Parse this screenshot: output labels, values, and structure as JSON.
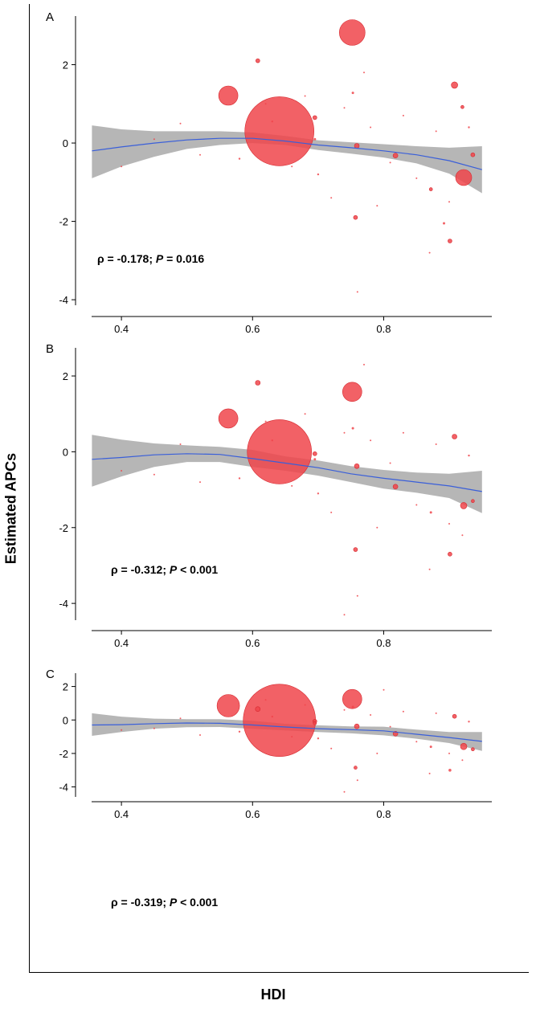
{
  "figure": {
    "ylabel": "Estimated APCs",
    "xlabel": "HDI"
  },
  "colors": {
    "point": "#f0454b",
    "band": "#a9a9a9",
    "line": "#3a5fd9",
    "axis": "#000000"
  },
  "chart_data": [
    {
      "type": "scatter",
      "panel": "A",
      "annotation": {
        "rho": "ρ = -0.178;",
        "p_label": "P",
        "p_text": " = 0.016"
      },
      "xlim": [
        0.33,
        0.96
      ],
      "ylim": [
        -4.1,
        3.2
      ],
      "x_ticks": [
        0.4,
        0.6,
        0.8
      ],
      "x_tick_labels": [
        "0.4",
        "0.6",
        "0.8"
      ],
      "y_ticks": [
        -4,
        -2,
        0,
        2
      ],
      "y_tick_labels": [
        "-4",
        "-2",
        "0",
        "2"
      ],
      "trend": {
        "x": [
          0.355,
          0.4,
          0.45,
          0.5,
          0.55,
          0.6,
          0.65,
          0.7,
          0.75,
          0.8,
          0.85,
          0.9,
          0.95
        ],
        "y": [
          -0.2,
          -0.1,
          0.0,
          0.08,
          0.12,
          0.12,
          0.05,
          -0.05,
          -0.12,
          -0.2,
          -0.3,
          -0.45,
          -0.68
        ],
        "lower": [
          -0.9,
          -0.6,
          -0.35,
          -0.15,
          -0.05,
          0.0,
          -0.05,
          -0.18,
          -0.27,
          -0.37,
          -0.52,
          -0.78,
          -1.28
        ],
        "upper": [
          0.45,
          0.35,
          0.3,
          0.3,
          0.3,
          0.27,
          0.18,
          0.07,
          0.02,
          -0.03,
          -0.08,
          -0.12,
          -0.08
        ]
      },
      "points": [
        {
          "x": 0.641,
          "y": 0.3,
          "size": 43
        },
        {
          "x": 0.752,
          "y": 2.82,
          "size": 16
        },
        {
          "x": 0.563,
          "y": 1.21,
          "size": 12
        },
        {
          "x": 0.922,
          "y": -0.88,
          "size": 10
        },
        {
          "x": 0.908,
          "y": 1.48,
          "size": 4
        },
        {
          "x": 0.608,
          "y": 2.1,
          "size": 2.5
        },
        {
          "x": 0.759,
          "y": -0.07,
          "size": 3
        },
        {
          "x": 0.818,
          "y": -0.32,
          "size": 3
        },
        {
          "x": 0.695,
          "y": 0.65,
          "size": 2.5
        },
        {
          "x": 0.757,
          "y": -1.9,
          "size": 2.5
        },
        {
          "x": 0.901,
          "y": -2.5,
          "size": 2.5
        },
        {
          "x": 0.936,
          "y": -0.3,
          "size": 2.5
        },
        {
          "x": 0.92,
          "y": 0.92,
          "size": 2
        },
        {
          "x": 0.753,
          "y": 1.28,
          "size": 1.5
        },
        {
          "x": 0.872,
          "y": -1.18,
          "size": 2
        },
        {
          "x": 0.892,
          "y": -2.05,
          "size": 1.5
        },
        {
          "x": 0.695,
          "y": 0.1,
          "size": 1.5
        },
        {
          "x": 0.63,
          "y": 0.55,
          "size": 1.2
        },
        {
          "x": 0.58,
          "y": -0.4,
          "size": 1.2
        },
        {
          "x": 0.45,
          "y": 0.1,
          "size": 1
        },
        {
          "x": 0.52,
          "y": -0.3,
          "size": 1
        },
        {
          "x": 0.7,
          "y": -0.8,
          "size": 1.2
        },
        {
          "x": 0.72,
          "y": -1.4,
          "size": 1
        },
        {
          "x": 0.78,
          "y": 0.4,
          "size": 1
        },
        {
          "x": 0.83,
          "y": 0.7,
          "size": 1
        },
        {
          "x": 0.85,
          "y": -0.9,
          "size": 1
        },
        {
          "x": 0.88,
          "y": 0.3,
          "size": 1
        },
        {
          "x": 0.93,
          "y": 0.4,
          "size": 1.2
        },
        {
          "x": 0.66,
          "y": -0.6,
          "size": 1
        },
        {
          "x": 0.62,
          "y": 1.0,
          "size": 1
        },
        {
          "x": 0.74,
          "y": 0.9,
          "size": 1
        },
        {
          "x": 0.79,
          "y": -1.6,
          "size": 1
        },
        {
          "x": 0.87,
          "y": -2.8,
          "size": 1
        },
        {
          "x": 0.49,
          "y": 0.5,
          "size": 1
        },
        {
          "x": 0.4,
          "y": -0.6,
          "size": 1
        },
        {
          "x": 0.68,
          "y": 1.2,
          "size": 1
        },
        {
          "x": 0.77,
          "y": 1.8,
          "size": 1
        },
        {
          "x": 0.81,
          "y": -0.5,
          "size": 1
        },
        {
          "x": 0.9,
          "y": -1.5,
          "size": 1
        },
        {
          "x": 0.76,
          "y": -3.8,
          "size": 1
        }
      ]
    },
    {
      "type": "scatter",
      "panel": "B",
      "annotation": {
        "rho": "ρ = -0.312;",
        "p_label": "P",
        "p_text": " < 0.001"
      },
      "xlim": [
        0.33,
        0.96
      ],
      "ylim": [
        -4.4,
        2.7
      ],
      "x_ticks": [
        0.4,
        0.6,
        0.8
      ],
      "x_tick_labels": [
        "0.4",
        "0.6",
        "0.8"
      ],
      "y_ticks": [
        -4,
        -2,
        0,
        2
      ],
      "y_tick_labels": [
        "-4",
        "-2",
        "0",
        "2"
      ],
      "trend": {
        "x": [
          0.355,
          0.4,
          0.45,
          0.5,
          0.55,
          0.6,
          0.65,
          0.7,
          0.75,
          0.8,
          0.85,
          0.9,
          0.95
        ],
        "y": [
          -0.2,
          -0.15,
          -0.08,
          -0.05,
          -0.07,
          -0.18,
          -0.3,
          -0.42,
          -0.58,
          -0.7,
          -0.8,
          -0.9,
          -1.05
        ],
        "lower": [
          -0.92,
          -0.65,
          -0.4,
          -0.27,
          -0.27,
          -0.4,
          -0.5,
          -0.63,
          -0.8,
          -0.97,
          -1.08,
          -1.22,
          -1.62
        ],
        "upper": [
          0.45,
          0.32,
          0.22,
          0.17,
          0.13,
          0.05,
          -0.12,
          -0.23,
          -0.38,
          -0.48,
          -0.55,
          -0.58,
          -0.5
        ]
      },
      "points": [
        {
          "x": 0.641,
          "y": 0.0,
          "size": 40
        },
        {
          "x": 0.752,
          "y": 1.58,
          "size": 12
        },
        {
          "x": 0.563,
          "y": 0.88,
          "size": 12
        },
        {
          "x": 0.922,
          "y": -1.42,
          "size": 4
        },
        {
          "x": 0.908,
          "y": 0.4,
          "size": 3
        },
        {
          "x": 0.608,
          "y": 1.82,
          "size": 3
        },
        {
          "x": 0.759,
          "y": -0.38,
          "size": 3
        },
        {
          "x": 0.818,
          "y": -0.92,
          "size": 3
        },
        {
          "x": 0.695,
          "y": -0.05,
          "size": 2.5
        },
        {
          "x": 0.757,
          "y": -2.58,
          "size": 2.5
        },
        {
          "x": 0.901,
          "y": -2.7,
          "size": 2.5
        },
        {
          "x": 0.936,
          "y": -1.3,
          "size": 2
        },
        {
          "x": 0.753,
          "y": 0.62,
          "size": 1.5
        },
        {
          "x": 0.872,
          "y": -1.6,
          "size": 1.5
        },
        {
          "x": 0.695,
          "y": -0.2,
          "size": 1.5
        },
        {
          "x": 0.63,
          "y": 0.3,
          "size": 1.2
        },
        {
          "x": 0.58,
          "y": -0.7,
          "size": 1.2
        },
        {
          "x": 0.45,
          "y": -0.6,
          "size": 1
        },
        {
          "x": 0.52,
          "y": -0.8,
          "size": 1
        },
        {
          "x": 0.7,
          "y": -1.1,
          "size": 1.2
        },
        {
          "x": 0.72,
          "y": -1.6,
          "size": 1
        },
        {
          "x": 0.78,
          "y": 0.3,
          "size": 1
        },
        {
          "x": 0.83,
          "y": 0.5,
          "size": 1
        },
        {
          "x": 0.85,
          "y": -1.4,
          "size": 1
        },
        {
          "x": 0.88,
          "y": 0.2,
          "size": 1
        },
        {
          "x": 0.93,
          "y": -0.1,
          "size": 1.2
        },
        {
          "x": 0.66,
          "y": -0.9,
          "size": 1
        },
        {
          "x": 0.62,
          "y": 0.8,
          "size": 1
        },
        {
          "x": 0.74,
          "y": 0.5,
          "size": 1
        },
        {
          "x": 0.79,
          "y": -2.0,
          "size": 1
        },
        {
          "x": 0.87,
          "y": -3.1,
          "size": 1
        },
        {
          "x": 0.49,
          "y": 0.2,
          "size": 1
        },
        {
          "x": 0.4,
          "y": -0.5,
          "size": 1
        },
        {
          "x": 0.68,
          "y": 1.0,
          "size": 1
        },
        {
          "x": 0.77,
          "y": 2.3,
          "size": 1
        },
        {
          "x": 0.81,
          "y": -0.3,
          "size": 1
        },
        {
          "x": 0.9,
          "y": -1.9,
          "size": 1
        },
        {
          "x": 0.76,
          "y": -3.8,
          "size": 1
        },
        {
          "x": 0.74,
          "y": -4.3,
          "size": 1
        },
        {
          "x": 0.92,
          "y": -2.2,
          "size": 1
        }
      ]
    },
    {
      "type": "scatter",
      "panel": "C",
      "annotation": {
        "rho": "ρ = -0.319;",
        "p_label": "P",
        "p_text": " < 0.001"
      },
      "xlim": [
        0.33,
        0.96
      ],
      "ylim": [
        -4.5,
        2.7
      ],
      "x_ticks": [
        0.4,
        0.6,
        0.8
      ],
      "x_tick_labels": [
        "0.4",
        "0.6",
        "0.8"
      ],
      "y_ticks": [
        -4,
        -2,
        0,
        2
      ],
      "y_tick_labels": [
        "-4",
        "-2",
        "0",
        "2"
      ],
      "trend": {
        "x": [
          0.355,
          0.4,
          0.45,
          0.5,
          0.55,
          0.6,
          0.65,
          0.7,
          0.75,
          0.8,
          0.85,
          0.9,
          0.95
        ],
        "y": [
          -0.3,
          -0.28,
          -0.22,
          -0.18,
          -0.2,
          -0.3,
          -0.42,
          -0.52,
          -0.58,
          -0.65,
          -0.85,
          -1.05,
          -1.28
        ],
        "lower": [
          -0.95,
          -0.72,
          -0.52,
          -0.43,
          -0.42,
          -0.53,
          -0.62,
          -0.72,
          -0.8,
          -0.92,
          -1.12,
          -1.38,
          -1.85
        ],
        "upper": [
          0.4,
          0.2,
          0.08,
          0.05,
          0.05,
          -0.05,
          -0.23,
          -0.32,
          -0.38,
          -0.4,
          -0.58,
          -0.72,
          -0.72
        ]
      },
      "points": [
        {
          "x": 0.641,
          "y": -0.02,
          "size": 45
        },
        {
          "x": 0.752,
          "y": 1.25,
          "size": 12
        },
        {
          "x": 0.563,
          "y": 0.85,
          "size": 14
        },
        {
          "x": 0.922,
          "y": -1.58,
          "size": 4
        },
        {
          "x": 0.908,
          "y": 0.22,
          "size": 2.5
        },
        {
          "x": 0.608,
          "y": 0.65,
          "size": 3
        },
        {
          "x": 0.759,
          "y": -0.38,
          "size": 3
        },
        {
          "x": 0.818,
          "y": -0.82,
          "size": 3
        },
        {
          "x": 0.695,
          "y": -0.08,
          "size": 2.5
        },
        {
          "x": 0.695,
          "y": -0.2,
          "size": 2
        },
        {
          "x": 0.757,
          "y": -2.85,
          "size": 2
        },
        {
          "x": 0.901,
          "y": -3.0,
          "size": 1.8
        },
        {
          "x": 0.936,
          "y": -1.75,
          "size": 2
        },
        {
          "x": 0.753,
          "y": 0.78,
          "size": 1.5
        },
        {
          "x": 0.872,
          "y": -1.6,
          "size": 1.5
        },
        {
          "x": 0.63,
          "y": 0.2,
          "size": 1.2
        },
        {
          "x": 0.58,
          "y": -0.7,
          "size": 1.2
        },
        {
          "x": 0.45,
          "y": -0.5,
          "size": 1
        },
        {
          "x": 0.52,
          "y": -0.9,
          "size": 1
        },
        {
          "x": 0.7,
          "y": -1.1,
          "size": 1.2
        },
        {
          "x": 0.72,
          "y": -1.7,
          "size": 1
        },
        {
          "x": 0.78,
          "y": 0.3,
          "size": 1
        },
        {
          "x": 0.83,
          "y": 0.5,
          "size": 1
        },
        {
          "x": 0.85,
          "y": -1.3,
          "size": 1
        },
        {
          "x": 0.88,
          "y": 0.4,
          "size": 1
        },
        {
          "x": 0.93,
          "y": -0.1,
          "size": 1.2
        },
        {
          "x": 0.66,
          "y": -1.0,
          "size": 1
        },
        {
          "x": 0.62,
          "y": 1.2,
          "size": 1
        },
        {
          "x": 0.74,
          "y": 0.6,
          "size": 1
        },
        {
          "x": 0.79,
          "y": -2.0,
          "size": 1
        },
        {
          "x": 0.87,
          "y": -3.2,
          "size": 1
        },
        {
          "x": 0.49,
          "y": 0.1,
          "size": 1
        },
        {
          "x": 0.4,
          "y": -0.6,
          "size": 1
        },
        {
          "x": 0.68,
          "y": 0.9,
          "size": 1
        },
        {
          "x": 0.8,
          "y": 1.8,
          "size": 1
        },
        {
          "x": 0.81,
          "y": -0.4,
          "size": 1
        },
        {
          "x": 0.9,
          "y": -2.0,
          "size": 1
        },
        {
          "x": 0.76,
          "y": -3.6,
          "size": 1
        },
        {
          "x": 0.74,
          "y": -4.3,
          "size": 1
        },
        {
          "x": 0.92,
          "y": -2.4,
          "size": 1
        }
      ]
    }
  ]
}
